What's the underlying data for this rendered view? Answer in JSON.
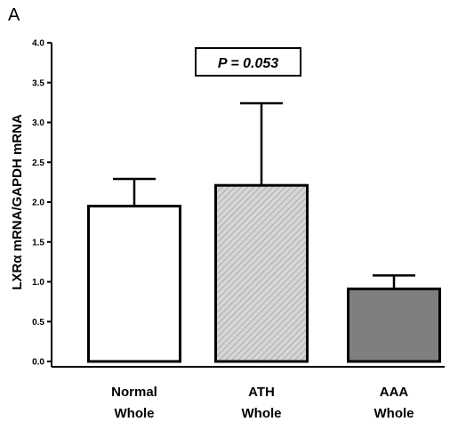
{
  "panel_label": "A",
  "annotation": "P = 0.053",
  "chart_data": {
    "type": "bar",
    "title": "",
    "xlabel": "",
    "ylabel": "LXRα mRNA/GAPDH mRNA",
    "ylim": [
      0,
      4.0
    ],
    "yticks": [
      "0.0",
      "0.5",
      "1.0",
      "1.5",
      "2.0",
      "2.5",
      "3.0",
      "3.5",
      "4.0"
    ],
    "categories": [
      {
        "line1": "Normal",
        "line2": "Whole"
      },
      {
        "line1": "ATH",
        "line2": "Whole"
      },
      {
        "line1": "AAA",
        "line2": "Whole"
      }
    ],
    "values": [
      1.95,
      2.21,
      0.91
    ],
    "errors": [
      0.34,
      1.03,
      0.17
    ],
    "bar_fills": [
      "#ffffff",
      "hatch-light",
      "#7f7f7f"
    ],
    "grid": false,
    "legend": "none"
  }
}
